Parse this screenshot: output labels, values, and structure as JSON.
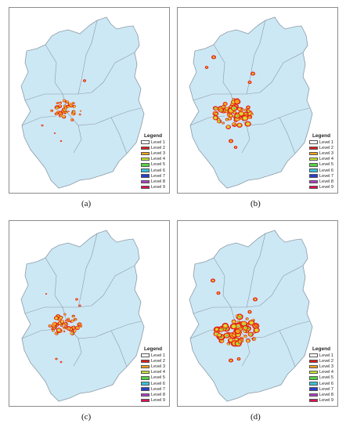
{
  "legend": {
    "title": "Legend",
    "levels": [
      {
        "label": "Level 1",
        "color": "#ffffff"
      },
      {
        "label": "Level 2",
        "color": "#e31a1c"
      },
      {
        "label": "Level 3",
        "color": "#f4a31a"
      },
      {
        "label": "Level 4",
        "color": "#c8e636"
      },
      {
        "label": "Level 5",
        "color": "#58d146"
      },
      {
        "label": "Level 6",
        "color": "#38c1d6"
      },
      {
        "label": "Level 7",
        "color": "#2b3ec8"
      },
      {
        "label": "Level 8",
        "color": "#b23cc8"
      },
      {
        "label": "Level 9",
        "color": "#e0104e"
      }
    ]
  },
  "region_color": "#cde8f5",
  "boundary_color": "#8a9aa6",
  "panels": [
    {
      "id": "a",
      "caption": "(a)"
    },
    {
      "id": "b",
      "caption": "(b)"
    },
    {
      "id": "c",
      "caption": "(c)"
    },
    {
      "id": "d",
      "caption": "(d)"
    }
  ]
}
